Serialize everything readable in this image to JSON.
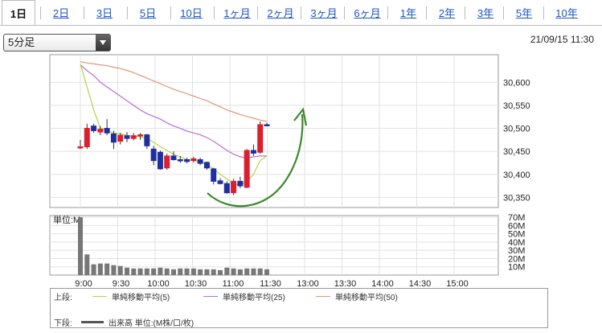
{
  "tabs": [
    {
      "label": "1日",
      "active": true
    },
    {
      "label": "2日"
    },
    {
      "label": "3日"
    },
    {
      "label": "5日"
    },
    {
      "label": "10日"
    },
    {
      "label": "1ヶ月"
    },
    {
      "label": "2ヶ月"
    },
    {
      "label": "3ヶ月"
    },
    {
      "label": "6ヶ月"
    },
    {
      "label": "1年"
    },
    {
      "label": "2年"
    },
    {
      "label": "3年"
    },
    {
      "label": "5年"
    },
    {
      "label": "10年"
    }
  ],
  "interval_select": {
    "value": "5分足"
  },
  "datetime": "21/09/15 11:30",
  "colors": {
    "up": "#dd1e2d",
    "down": "#1f2fa0",
    "ma5": "#b8d14a",
    "ma25": "#b46ed9",
    "ma50": "#e2967b",
    "volume": "#777777",
    "arrow": "#3a8a2a"
  },
  "legend": {
    "upper_label": "上段:",
    "lower_label": "下段:",
    "ma5": "単純移動平均(5)",
    "ma25": "単純移動平均(25)",
    "ma50": "単純移動平均(50)",
    "volume": "出来高 単位:(M株/口/枚)"
  },
  "chart_data": [
    {
      "type": "candlestick",
      "x_labels": [
        "9:00",
        "9:30",
        "10:00",
        "10:30",
        "11:00",
        "11:30",
        "13:00",
        "13:30",
        "14:00",
        "14:30",
        "15:00"
      ],
      "yticks": [
        30350,
        30400,
        30450,
        30500,
        30550,
        30600
      ],
      "ylim": [
        30328,
        30660
      ],
      "candles": [
        {
          "o": 30460,
          "h": 30475,
          "l": 30455,
          "c": 30460
        },
        {
          "o": 30460,
          "h": 30510,
          "l": 30455,
          "c": 30500
        },
        {
          "o": 30505,
          "h": 30510,
          "l": 30490,
          "c": 30495
        },
        {
          "o": 30492,
          "h": 30505,
          "l": 30485,
          "c": 30498
        },
        {
          "o": 30500,
          "h": 30520,
          "l": 30485,
          "c": 30490
        },
        {
          "o": 30488,
          "h": 30495,
          "l": 30455,
          "c": 30470
        },
        {
          "o": 30472,
          "h": 30490,
          "l": 30465,
          "c": 30485
        },
        {
          "o": 30484,
          "h": 30492,
          "l": 30470,
          "c": 30478
        },
        {
          "o": 30478,
          "h": 30490,
          "l": 30474,
          "c": 30484
        },
        {
          "o": 30484,
          "h": 30490,
          "l": 30475,
          "c": 30486
        },
        {
          "o": 30486,
          "h": 30488,
          "l": 30455,
          "c": 30462
        },
        {
          "o": 30455,
          "h": 30462,
          "l": 30420,
          "c": 30430
        },
        {
          "o": 30448,
          "h": 30452,
          "l": 30410,
          "c": 30412
        },
        {
          "o": 30414,
          "h": 30445,
          "l": 30410,
          "c": 30440
        },
        {
          "o": 30440,
          "h": 30450,
          "l": 30430,
          "c": 30432
        },
        {
          "o": 30432,
          "h": 30440,
          "l": 30425,
          "c": 30430
        },
        {
          "o": 30432,
          "h": 30436,
          "l": 30424,
          "c": 30428
        },
        {
          "o": 30430,
          "h": 30438,
          "l": 30426,
          "c": 30434
        },
        {
          "o": 30432,
          "h": 30436,
          "l": 30420,
          "c": 30424
        },
        {
          "o": 30426,
          "h": 30428,
          "l": 30410,
          "c": 30414
        },
        {
          "o": 30412,
          "h": 30414,
          "l": 30378,
          "c": 30385
        },
        {
          "o": 30386,
          "h": 30392,
          "l": 30378,
          "c": 30380
        },
        {
          "o": 30380,
          "h": 30385,
          "l": 30358,
          "c": 30360
        },
        {
          "o": 30360,
          "h": 30390,
          "l": 30355,
          "c": 30385
        },
        {
          "o": 30385,
          "h": 30395,
          "l": 30370,
          "c": 30375
        },
        {
          "o": 30372,
          "h": 30455,
          "l": 30370,
          "c": 30452
        },
        {
          "o": 30452,
          "h": 30465,
          "l": 30440,
          "c": 30446
        },
        {
          "o": 30448,
          "h": 30515,
          "l": 30445,
          "c": 30508
        },
        {
          "o": 30508,
          "h": 30512,
          "l": 30505,
          "c": 30507
        }
      ],
      "ma5": [
        30640,
        30590,
        30540,
        30500,
        30495,
        30490,
        30488,
        30485,
        30483,
        30482,
        30478,
        30470,
        30460,
        30452,
        30444,
        30438,
        30432,
        30430,
        30428,
        30422,
        30412,
        30400,
        30390,
        30380,
        30376,
        30385,
        30400,
        30430,
        30440
      ],
      "ma25": [
        30638,
        30625,
        30615,
        30600,
        30590,
        30580,
        30570,
        30560,
        30550,
        30540,
        30532,
        30526,
        30520,
        30512,
        30505,
        30500,
        30494,
        30490,
        30486,
        30480,
        30472,
        30462,
        30452,
        30444,
        30438,
        30436,
        30438,
        30440,
        30440
      ],
      "ma50": [
        30645,
        30642,
        30640,
        30638,
        30636,
        30633,
        30630,
        30626,
        30621,
        30615,
        30609,
        30603,
        30597,
        30591,
        30585,
        30580,
        30575,
        30570,
        30565,
        30560,
        30553,
        30547,
        30540,
        30535,
        30530,
        30526,
        30522,
        30518,
        30515
      ]
    },
    {
      "type": "bar",
      "ylabel": "単位:M",
      "yticks_labels": [
        "10M",
        "20M",
        "30M",
        "40M",
        "50M",
        "60M",
        "70M"
      ],
      "yticks_values": [
        10,
        20,
        30,
        40,
        50,
        60,
        70
      ],
      "ylim": [
        0,
        72
      ],
      "values": [
        70,
        25,
        13,
        14,
        14,
        12,
        11,
        9,
        8,
        8,
        8,
        8,
        9,
        8,
        7,
        8,
        8,
        8,
        7,
        7,
        7,
        6,
        9,
        8,
        7,
        8,
        8,
        8,
        7
      ]
    }
  ]
}
